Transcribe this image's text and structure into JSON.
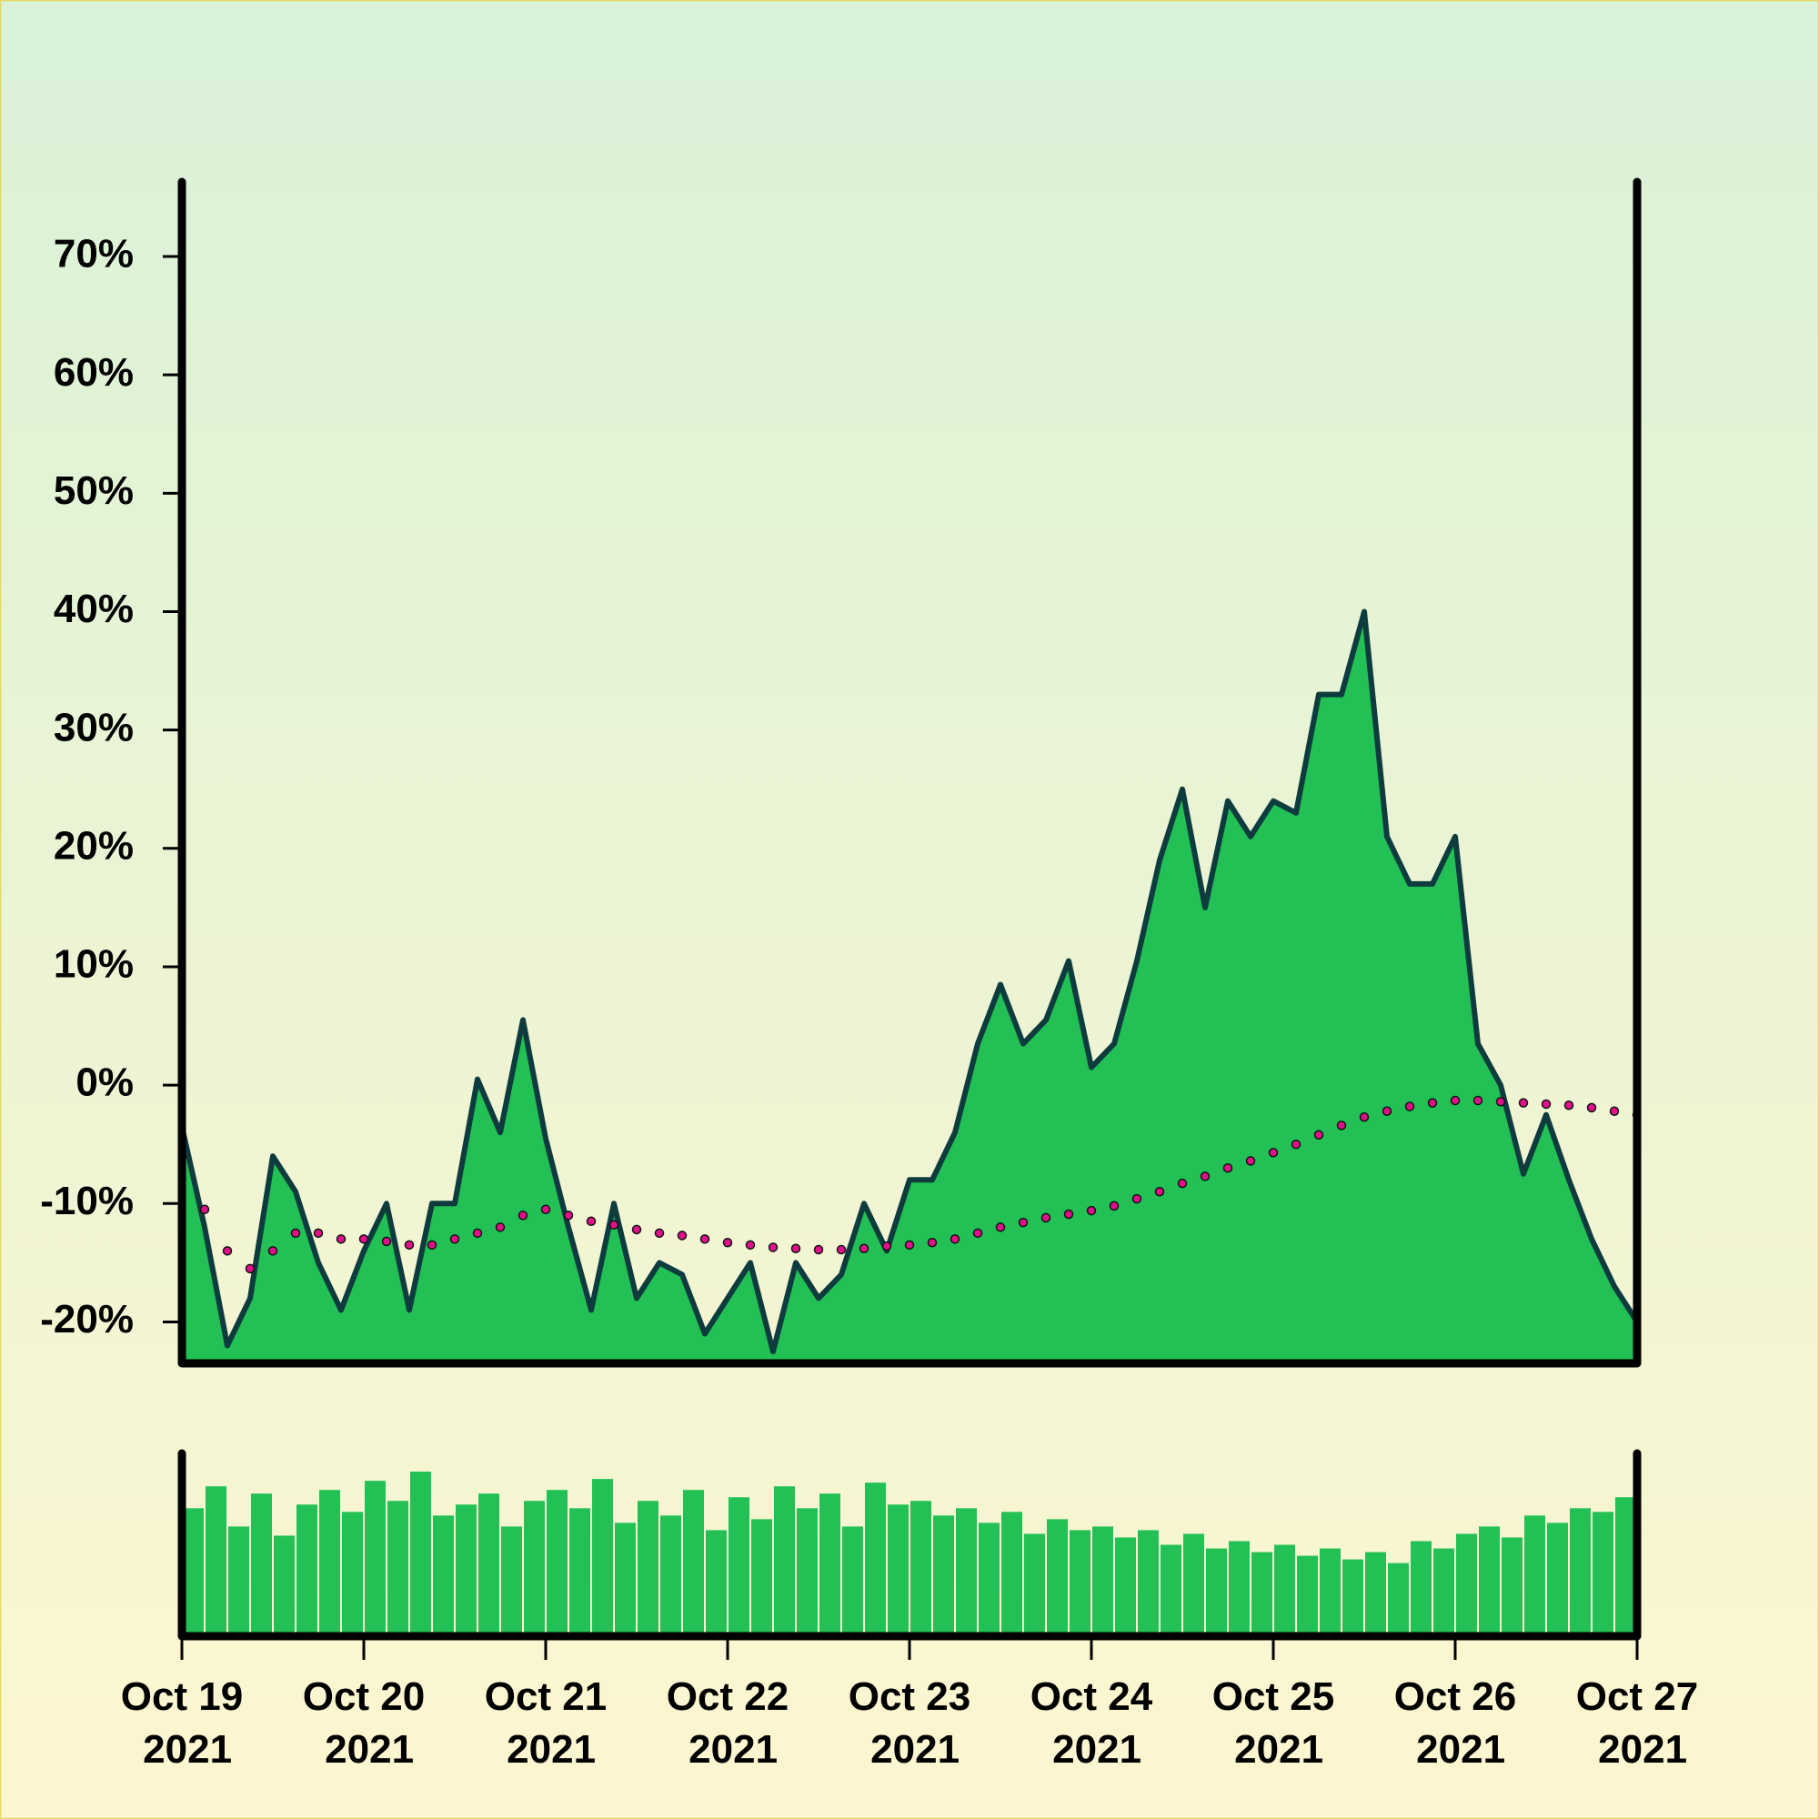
{
  "chart_data": {
    "type": "area",
    "x": [
      "2021-10-19T00:00",
      "2021-10-19T03:00",
      "2021-10-19T06:00",
      "2021-10-19T09:00",
      "2021-10-19T12:00",
      "2021-10-19T15:00",
      "2021-10-19T18:00",
      "2021-10-19T21:00",
      "2021-10-20T00:00",
      "2021-10-20T03:00",
      "2021-10-20T06:00",
      "2021-10-20T09:00",
      "2021-10-20T12:00",
      "2021-10-20T15:00",
      "2021-10-20T18:00",
      "2021-10-20T21:00",
      "2021-10-21T00:00",
      "2021-10-21T03:00",
      "2021-10-21T06:00",
      "2021-10-21T09:00",
      "2021-10-21T12:00",
      "2021-10-21T15:00",
      "2021-10-21T18:00",
      "2021-10-21T21:00",
      "2021-10-22T00:00",
      "2021-10-22T03:00",
      "2021-10-22T06:00",
      "2021-10-22T09:00",
      "2021-10-22T12:00",
      "2021-10-22T15:00",
      "2021-10-22T18:00",
      "2021-10-22T21:00",
      "2021-10-23T00:00",
      "2021-10-23T03:00",
      "2021-10-23T06:00",
      "2021-10-23T09:00",
      "2021-10-23T12:00",
      "2021-10-23T15:00",
      "2021-10-23T18:00",
      "2021-10-23T21:00",
      "2021-10-24T00:00",
      "2021-10-24T03:00",
      "2021-10-24T06:00",
      "2021-10-24T09:00",
      "2021-10-24T12:00",
      "2021-10-24T15:00",
      "2021-10-24T18:00",
      "2021-10-24T21:00",
      "2021-10-25T00:00",
      "2021-10-25T03:00",
      "2021-10-25T06:00",
      "2021-10-25T09:00",
      "2021-10-25T12:00",
      "2021-10-25T15:00",
      "2021-10-25T18:00",
      "2021-10-25T21:00",
      "2021-10-26T00:00",
      "2021-10-26T03:00",
      "2021-10-26T06:00",
      "2021-10-26T09:00",
      "2021-10-26T12:00",
      "2021-10-26T15:00",
      "2021-10-26T18:00",
      "2021-10-26T21:00",
      "2021-10-27T00:00"
    ],
    "series": [
      {
        "color": "#22c055",
        "line_color": "#0d3b3e",
        "values": [
          -3.5,
          -12,
          -22,
          -18,
          -6,
          -9,
          -15,
          -19,
          -14,
          -10,
          -19,
          -10,
          -10,
          0.5,
          -4,
          5.5,
          -4.5,
          -12,
          -19,
          -10,
          -18,
          -15,
          -16,
          -21,
          -18,
          -15,
          -22.5,
          -15,
          -18,
          -16,
          -10,
          -14,
          -8,
          -8,
          -4,
          3.5,
          8.5,
          3.5,
          5.5,
          10.5,
          1.5,
          3.5,
          10.5,
          19,
          25,
          15,
          24,
          21,
          24,
          23,
          33,
          33,
          40,
          21,
          17,
          17,
          21,
          3.5,
          0,
          -7.5,
          -2.5,
          -8,
          -13,
          -17,
          -20
        ]
      },
      {
        "color": "#e0108a",
        "style": "dots",
        "values": [
          -6,
          -10.5,
          -14,
          -15.5,
          -14,
          -12.5,
          -12.5,
          -13,
          -13,
          -13.2,
          -13.5,
          -13.5,
          -13,
          -12.5,
          -12,
          -11,
          -10.5,
          -11,
          -11.5,
          -11.8,
          -12.2,
          -12.5,
          -12.7,
          -13,
          -13.3,
          -13.5,
          -13.7,
          -13.8,
          -13.9,
          -13.9,
          -13.8,
          -13.6,
          -13.5,
          -13.3,
          -13,
          -12.5,
          -12,
          -11.6,
          -11.2,
          -10.9,
          -10.6,
          -10.2,
          -9.6,
          -9,
          -8.3,
          -7.7,
          -7,
          -6.4,
          -5.7,
          -5,
          -4.2,
          -3.4,
          -2.7,
          -2.2,
          -1.8,
          -1.5,
          -1.3,
          -1.3,
          -1.4,
          -1.5,
          -1.6,
          -1.7,
          -1.9,
          -2.2,
          -2.5
        ]
      }
    ],
    "xlim": [
      "2021-10-19",
      "2021-10-27"
    ],
    "xticks": [
      {
        "value": "2021-10-19",
        "label": "Oct 19 2021"
      },
      {
        "value": "2021-10-20",
        "label": "Oct 20 2021"
      },
      {
        "value": "2021-10-21",
        "label": "Oct 21 2021"
      },
      {
        "value": "2021-10-22",
        "label": "Oct 22 2021"
      },
      {
        "value": "2021-10-23",
        "label": "Oct 23 2021"
      },
      {
        "value": "2021-10-24",
        "label": "Oct 24 2021"
      },
      {
        "value": "2021-10-25",
        "label": "Oct 25 2021"
      },
      {
        "value": "2021-10-26",
        "label": "Oct 26 2021"
      },
      {
        "value": "2021-10-27",
        "label": "Oct 27 2021"
      }
    ],
    "ylim": [
      -23.5,
      76.3
    ],
    "yticks": [
      {
        "value": -20,
        "label": "-20%"
      },
      {
        "value": -10,
        "label": "-10%"
      },
      {
        "value": 0,
        "label": "0%"
      },
      {
        "value": 10,
        "label": "10%"
      },
      {
        "value": 20,
        "label": "20%"
      },
      {
        "value": 30,
        "label": "30%"
      },
      {
        "value": 40,
        "label": "40%"
      },
      {
        "value": 50,
        "label": "50%"
      },
      {
        "value": 60,
        "label": "60%"
      },
      {
        "value": 70,
        "label": "70%"
      }
    ],
    "volume": {
      "color": "#22c055",
      "ylim": [
        0,
        100
      ],
      "values": [
        70,
        82,
        60,
        78,
        55,
        72,
        80,
        68,
        85,
        74,
        90,
        66,
        72,
        78,
        60,
        74,
        80,
        70,
        86,
        62,
        74,
        66,
        80,
        58,
        76,
        64,
        82,
        70,
        78,
        60,
        84,
        72,
        74,
        66,
        70,
        62,
        68,
        56,
        64,
        58,
        60,
        54,
        58,
        50,
        56,
        48,
        52,
        46,
        50,
        44,
        48,
        42,
        46,
        40,
        52,
        48,
        56,
        60,
        54,
        66,
        62,
        70,
        68,
        76
      ]
    }
  }
}
